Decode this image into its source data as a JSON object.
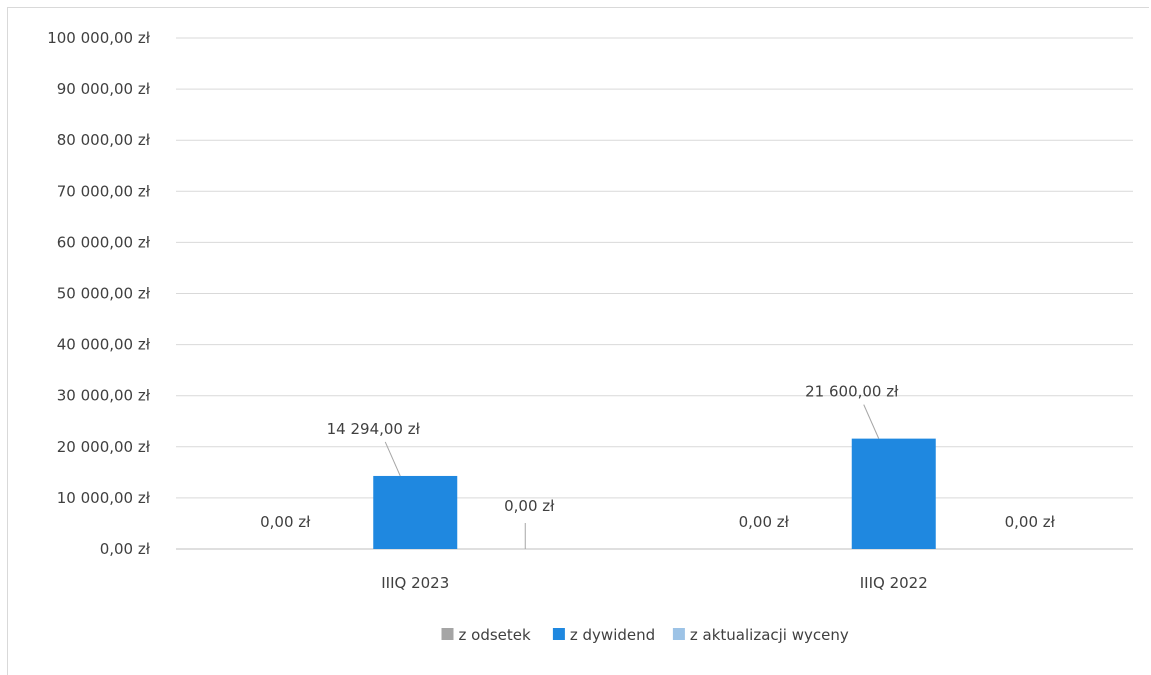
{
  "chart_data": {
    "type": "bar",
    "title": "",
    "xlabel": "",
    "ylabel": "",
    "ylim": [
      0,
      100000
    ],
    "y_tick_labels": [
      "0,00 zł",
      "10 000,00 zł",
      "20 000,00 zł",
      "30 000,00 zł",
      "40 000,00 zł",
      "50 000,00 zł",
      "60 000,00 zł",
      "70 000,00 zł",
      "80 000,00 zł",
      "90 000,00 zł",
      "100 000,00 zł"
    ],
    "categories": [
      "IIIQ 2023",
      "IIIQ 2022"
    ],
    "series": [
      {
        "name": "z odsetek",
        "color": "#a5a5a5",
        "values": [
          0,
          0
        ],
        "labels": [
          "0,00 zł",
          "0,00 zł"
        ]
      },
      {
        "name": "z dywidend",
        "color": "#1f88e0",
        "values": [
          14294,
          21600
        ],
        "labels": [
          "14 294,00 zł",
          "21 600,00 zł"
        ]
      },
      {
        "name": "z aktualizacji wyceny",
        "color": "#9dc3e6",
        "values": [
          0,
          0
        ],
        "labels": [
          "0,00 zł",
          "0,00 zł"
        ]
      }
    ],
    "grid": true,
    "legend_position": "bottom"
  }
}
